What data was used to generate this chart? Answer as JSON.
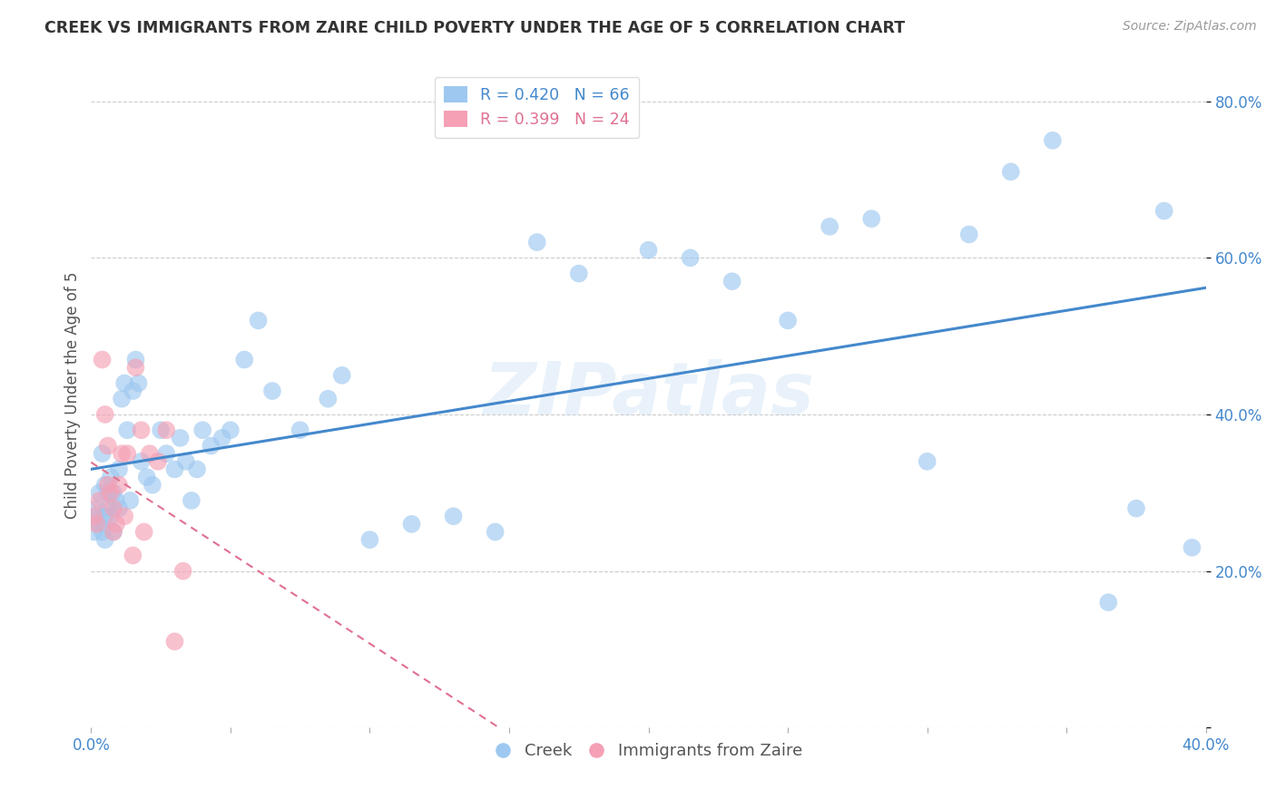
{
  "title": "CREEK VS IMMIGRANTS FROM ZAIRE CHILD POVERTY UNDER THE AGE OF 5 CORRELATION CHART",
  "source": "Source: ZipAtlas.com",
  "ylabel": "Child Poverty Under the Age of 5",
  "xlim": [
    0.0,
    0.4
  ],
  "ylim": [
    0.0,
    0.85
  ],
  "creek_R": 0.42,
  "creek_N": 66,
  "zaire_R": 0.399,
  "zaire_N": 24,
  "creek_color": "#9EC8F0",
  "zaire_color": "#F5A0B5",
  "trendline_creek_color": "#4488CC",
  "trendline_zaire_color": "#E07090",
  "watermark": "ZIPatlas",
  "creek_x": [
    0.001,
    0.002,
    0.002,
    0.003,
    0.003,
    0.004,
    0.004,
    0.005,
    0.005,
    0.005,
    0.006,
    0.006,
    0.007,
    0.007,
    0.008,
    0.008,
    0.009,
    0.01,
    0.01,
    0.011,
    0.012,
    0.013,
    0.014,
    0.015,
    0.016,
    0.017,
    0.018,
    0.02,
    0.022,
    0.025,
    0.027,
    0.03,
    0.032,
    0.034,
    0.036,
    0.038,
    0.04,
    0.043,
    0.047,
    0.05,
    0.055,
    0.06,
    0.065,
    0.075,
    0.085,
    0.09,
    0.1,
    0.115,
    0.13,
    0.145,
    0.16,
    0.175,
    0.2,
    0.215,
    0.23,
    0.25,
    0.265,
    0.28,
    0.3,
    0.315,
    0.33,
    0.345,
    0.365,
    0.375,
    0.385,
    0.395
  ],
  "creek_y": [
    0.25,
    0.28,
    0.27,
    0.3,
    0.26,
    0.35,
    0.25,
    0.27,
    0.24,
    0.31,
    0.28,
    0.3,
    0.27,
    0.32,
    0.25,
    0.3,
    0.29,
    0.28,
    0.33,
    0.42,
    0.44,
    0.38,
    0.29,
    0.43,
    0.47,
    0.44,
    0.34,
    0.32,
    0.31,
    0.38,
    0.35,
    0.33,
    0.37,
    0.34,
    0.29,
    0.33,
    0.38,
    0.36,
    0.37,
    0.38,
    0.47,
    0.52,
    0.43,
    0.38,
    0.42,
    0.45,
    0.24,
    0.26,
    0.27,
    0.25,
    0.62,
    0.58,
    0.61,
    0.6,
    0.57,
    0.52,
    0.64,
    0.65,
    0.34,
    0.63,
    0.71,
    0.75,
    0.16,
    0.28,
    0.66,
    0.23
  ],
  "zaire_x": [
    0.001,
    0.002,
    0.003,
    0.004,
    0.005,
    0.006,
    0.006,
    0.007,
    0.008,
    0.008,
    0.009,
    0.01,
    0.011,
    0.012,
    0.013,
    0.015,
    0.016,
    0.018,
    0.019,
    0.021,
    0.024,
    0.027,
    0.03,
    0.033
  ],
  "zaire_y": [
    0.27,
    0.26,
    0.29,
    0.47,
    0.4,
    0.31,
    0.36,
    0.3,
    0.28,
    0.25,
    0.26,
    0.31,
    0.35,
    0.27,
    0.35,
    0.22,
    0.46,
    0.38,
    0.25,
    0.35,
    0.34,
    0.38,
    0.11,
    0.2
  ]
}
